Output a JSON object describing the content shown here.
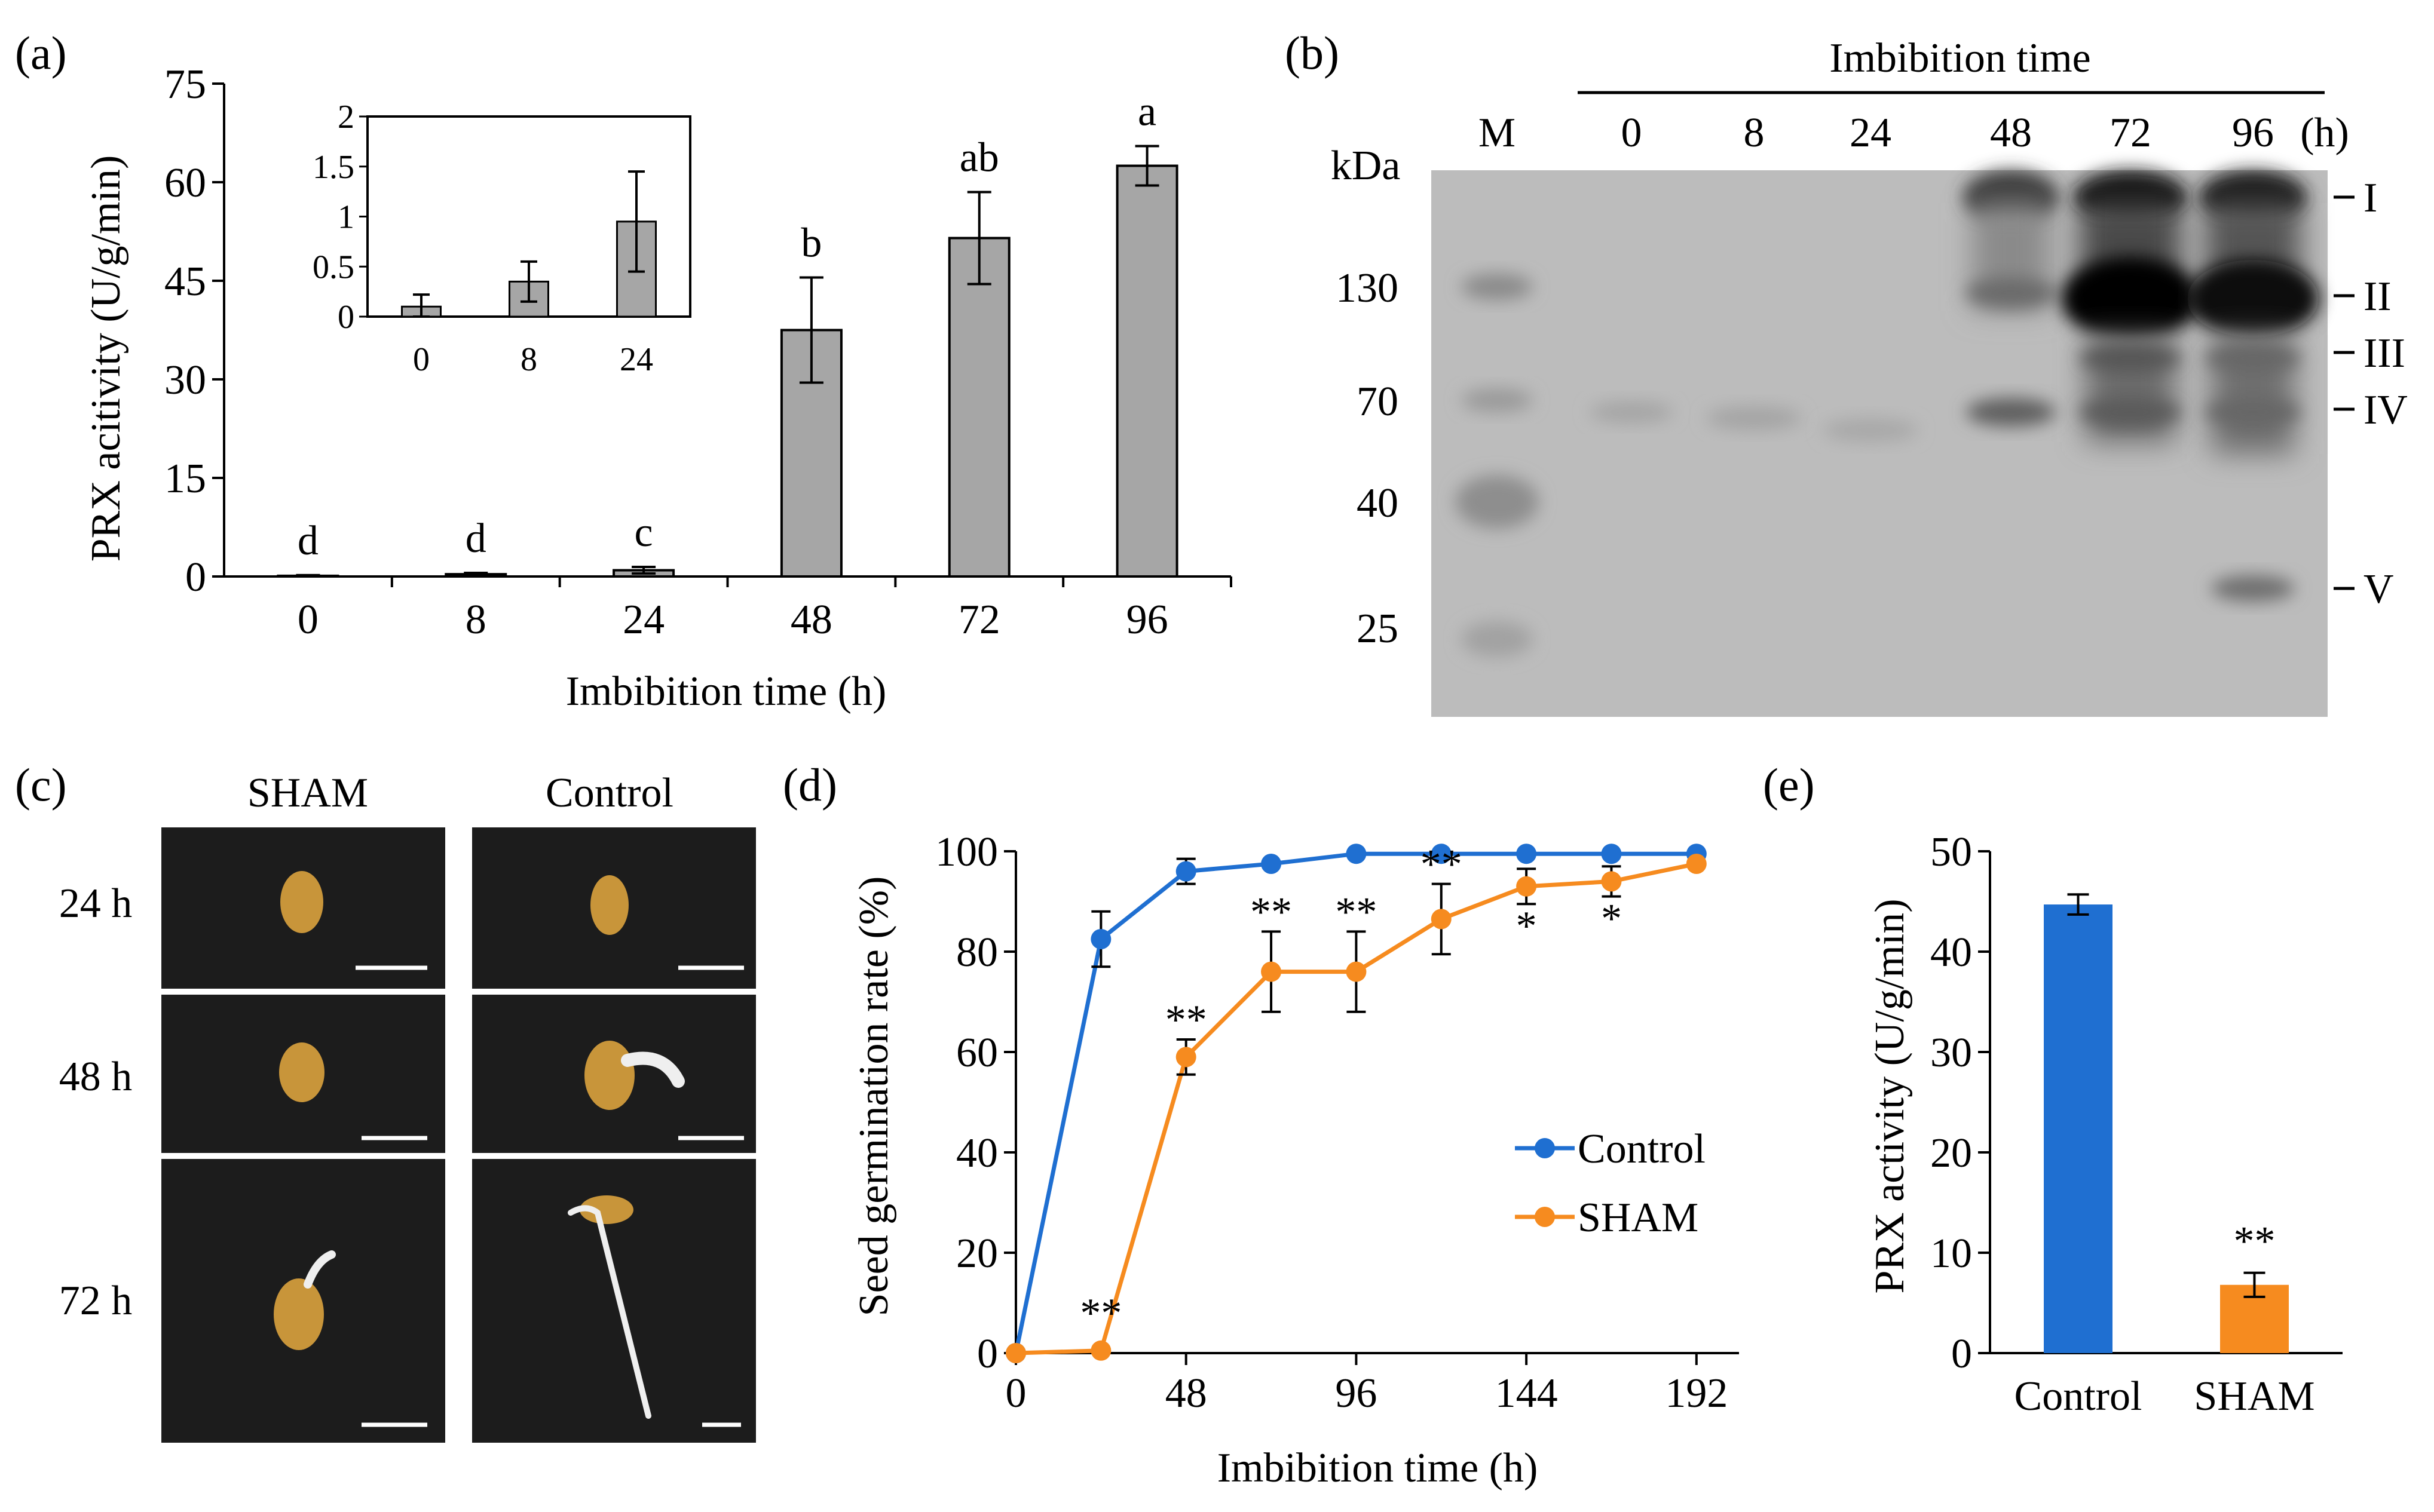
{
  "figure": {
    "labels": {
      "a": "(a)",
      "b": "(b)",
      "c": "(c)",
      "d": "(d)",
      "e": "(e)"
    }
  },
  "chart_data": [
    {
      "id": "a",
      "type": "bar",
      "title": "",
      "xlabel": "Imbibition time (h)",
      "ylabel": "PRX acitivity (U/g/min)",
      "categories": [
        "0",
        "8",
        "24",
        "48",
        "72",
        "96"
      ],
      "values": [
        0.1,
        0.35,
        0.95,
        37.5,
        51.5,
        62.5
      ],
      "errors": [
        0.1,
        0.2,
        0.5,
        8,
        7,
        3
      ],
      "significance": [
        "d",
        "d",
        "c",
        "b",
        "ab",
        "a"
      ],
      "ylim": [
        0,
        75
      ],
      "yticks": [
        "0",
        "15",
        "30",
        "45",
        "60",
        "75"
      ],
      "bar_color": "#a6a6a6",
      "inset": {
        "type": "bar",
        "categories": [
          "0",
          "8",
          "24"
        ],
        "values": [
          0.1,
          0.35,
          0.95
        ],
        "errors": [
          0.12,
          0.2,
          0.5
        ],
        "ylim": [
          0,
          2
        ],
        "yticks": [
          "0",
          "0.5",
          "1",
          "1.5",
          "2"
        ]
      }
    },
    {
      "id": "d",
      "type": "line",
      "xlabel": "Imbibition time (h)",
      "ylabel": "Seed germination rate (%)",
      "xlim": [
        0,
        204
      ],
      "ylim": [
        0,
        100
      ],
      "xticks": [
        "0",
        "48",
        "96",
        "144",
        "192"
      ],
      "yticks": [
        "0",
        "20",
        "40",
        "60",
        "80",
        "100"
      ],
      "legend_position": "right",
      "series": [
        {
          "name": "Control",
          "color": "#1f6fd1",
          "x": [
            0,
            24,
            48,
            72,
            96,
            120,
            144,
            168,
            192
          ],
          "y": [
            0,
            82.5,
            96,
            97.5,
            99.5,
            99.5,
            99.5,
            99.5,
            99.5
          ],
          "err": [
            0,
            5.5,
            2.5,
            0,
            0,
            0,
            0,
            0,
            0
          ]
        },
        {
          "name": "SHAM",
          "color": "#f68b1f",
          "x": [
            0,
            24,
            48,
            72,
            96,
            120,
            144,
            168,
            192
          ],
          "y": [
            0,
            0.5,
            59,
            76,
            76,
            86.5,
            93,
            94,
            97.5
          ],
          "err": [
            0,
            0,
            3.5,
            8,
            8,
            7,
            3.5,
            3,
            0
          ]
        }
      ],
      "significance": [
        {
          "x": 24,
          "label": "**"
        },
        {
          "x": 48,
          "label": "**"
        },
        {
          "x": 72,
          "label": "**"
        },
        {
          "x": 96,
          "label": "**"
        },
        {
          "x": 120,
          "label": "**"
        },
        {
          "x": 144,
          "label": "*"
        },
        {
          "x": 168,
          "label": "*"
        }
      ]
    },
    {
      "id": "e",
      "type": "bar",
      "xlabel": "",
      "ylabel": "PRX activity (U/g/min)",
      "categories": [
        "Control",
        "SHAM"
      ],
      "values": [
        44.7,
        6.8
      ],
      "errors": [
        1.0,
        1.2
      ],
      "colors": [
        "#1f6fd1",
        "#f68b1f"
      ],
      "ylim": [
        0,
        50
      ],
      "yticks": [
        "0",
        "10",
        "20",
        "30",
        "40",
        "50"
      ],
      "significance": [
        "",
        "**"
      ]
    }
  ],
  "blot": {
    "header": "Imbibition time",
    "marker_label": "M",
    "unit_label": "kDa",
    "lanes": [
      "0",
      "8",
      "24",
      "48",
      "72",
      "96"
    ],
    "lane_unit": "(h)",
    "markers": [
      "130",
      "70",
      "40",
      "25"
    ],
    "bands": [
      "I",
      "II",
      "III",
      "IV",
      "V"
    ]
  },
  "photos": {
    "columns": [
      "SHAM",
      "Control"
    ],
    "rows": [
      "24 h",
      "48 h",
      "72 h"
    ]
  }
}
